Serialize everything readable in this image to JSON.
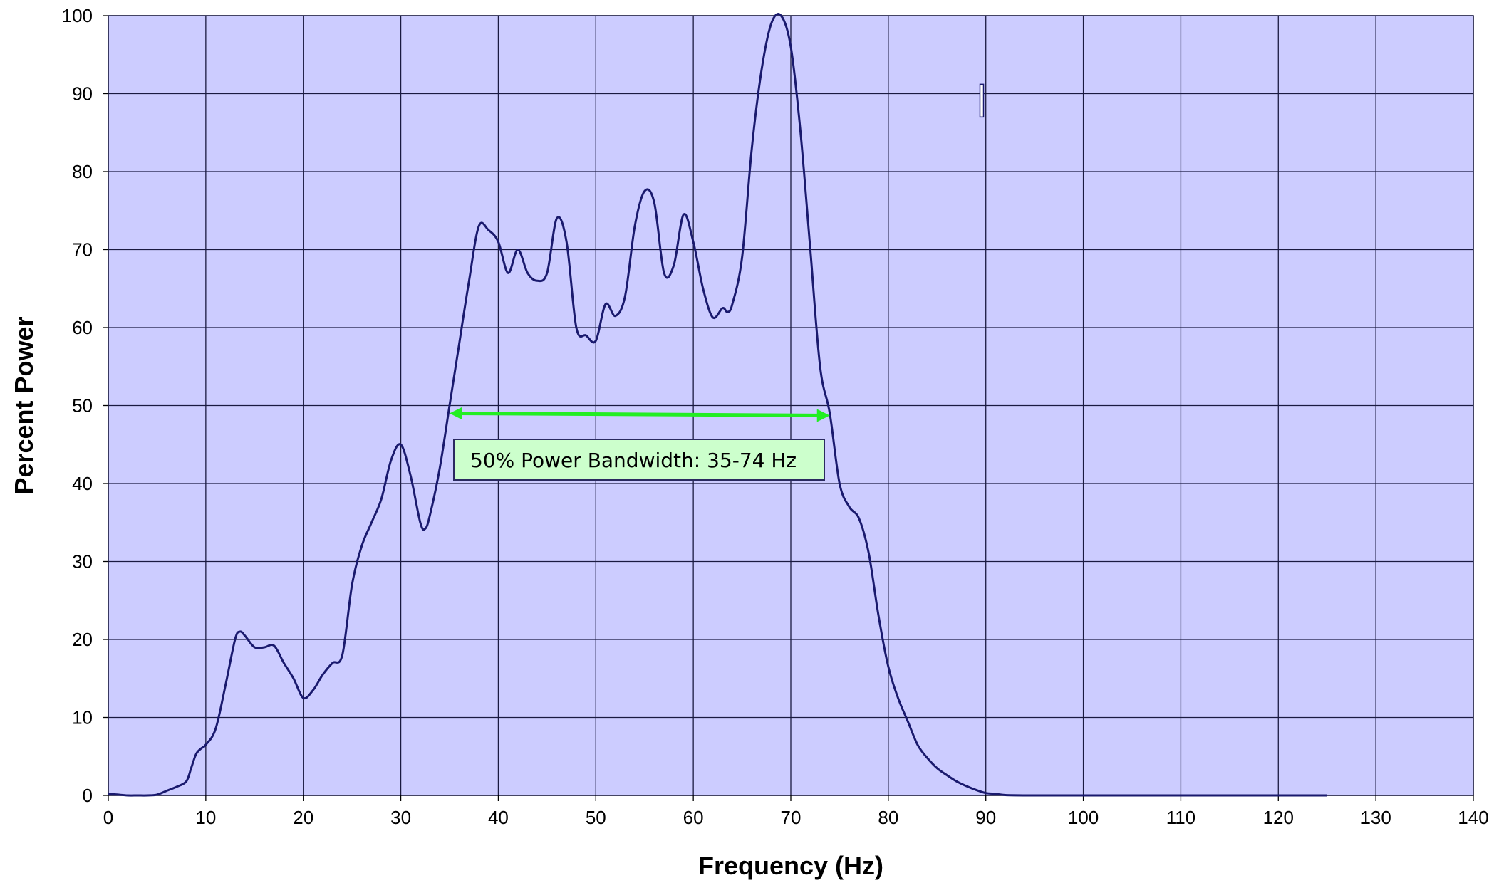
{
  "chart_data": {
    "type": "line",
    "title": "",
    "xlabel": "Frequency (Hz)",
    "ylabel": "Percent Power",
    "xlim": [
      0,
      140
    ],
    "ylim": [
      0,
      100
    ],
    "x_ticks": [
      0,
      10,
      20,
      30,
      40,
      50,
      60,
      70,
      80,
      90,
      100,
      110,
      120,
      130,
      140
    ],
    "y_ticks": [
      0,
      10,
      20,
      30,
      40,
      50,
      60,
      70,
      80,
      90,
      100
    ],
    "grid": true,
    "legend": "none",
    "colors": {
      "plot_background": "#ccccff",
      "grid": "#1a1a40",
      "series_line": "#1a1a6e",
      "bandwidth_arrow": "#22ee22",
      "annotation_box": "#ccffcc"
    },
    "series": [
      {
        "x": [
          0,
          1,
          2,
          3,
          4,
          5,
          6,
          7,
          8,
          8.5,
          9,
          9.5,
          10,
          11,
          12,
          13,
          13.5,
          14,
          15,
          16,
          17,
          18,
          19,
          20,
          21,
          22,
          23,
          24,
          25,
          26,
          27,
          28,
          29,
          30,
          31,
          32,
          32.5,
          33,
          34,
          35,
          36,
          37,
          38,
          39,
          40,
          41,
          42,
          43,
          44,
          45,
          46,
          47,
          48,
          49,
          50,
          51,
          52,
          53,
          54,
          55,
          56,
          57,
          58,
          59,
          60,
          61,
          62,
          63,
          63.5,
          64,
          65,
          66,
          67,
          68,
          69,
          70,
          71,
          72,
          73,
          74,
          75,
          76,
          77,
          78,
          79,
          80,
          81,
          82,
          83,
          84,
          85,
          86,
          87,
          88,
          89,
          90,
          91,
          92,
          94,
          96,
          100,
          110,
          120,
          125
        ],
        "y": [
          0.2,
          0.1,
          0,
          0,
          0,
          0.1,
          0.6,
          1.1,
          1.8,
          3.5,
          5.3,
          6,
          6.5,
          8.5,
          14,
          20,
          21,
          20.5,
          19,
          19,
          19.2,
          17,
          15,
          12.5,
          13.5,
          15.5,
          17,
          18,
          27,
          32,
          35,
          38,
          43,
          45,
          41,
          35,
          34.2,
          36,
          42,
          50,
          58,
          66,
          73,
          72.5,
          71,
          67,
          70,
          67,
          66,
          67,
          74,
          71,
          60,
          59,
          58.3,
          63,
          61.5,
          64,
          73,
          77.5,
          76,
          67,
          68,
          74.5,
          71,
          65,
          61.3,
          62.5,
          62,
          63,
          69,
          83,
          93,
          99,
          100,
          96,
          85,
          70,
          55,
          49,
          40,
          37,
          35.5,
          31,
          23,
          16.5,
          12.5,
          9.5,
          6.5,
          4.8,
          3.5,
          2.6,
          1.8,
          1.2,
          0.7,
          0.3,
          0.2,
          0.05,
          0,
          0,
          0,
          0,
          0,
          0
        ]
      }
    ],
    "annotations": [
      {
        "text": "50% Power Bandwidth: 35-74 Hz",
        "x_start": 35,
        "x_end": 74,
        "y": 49
      }
    ]
  }
}
